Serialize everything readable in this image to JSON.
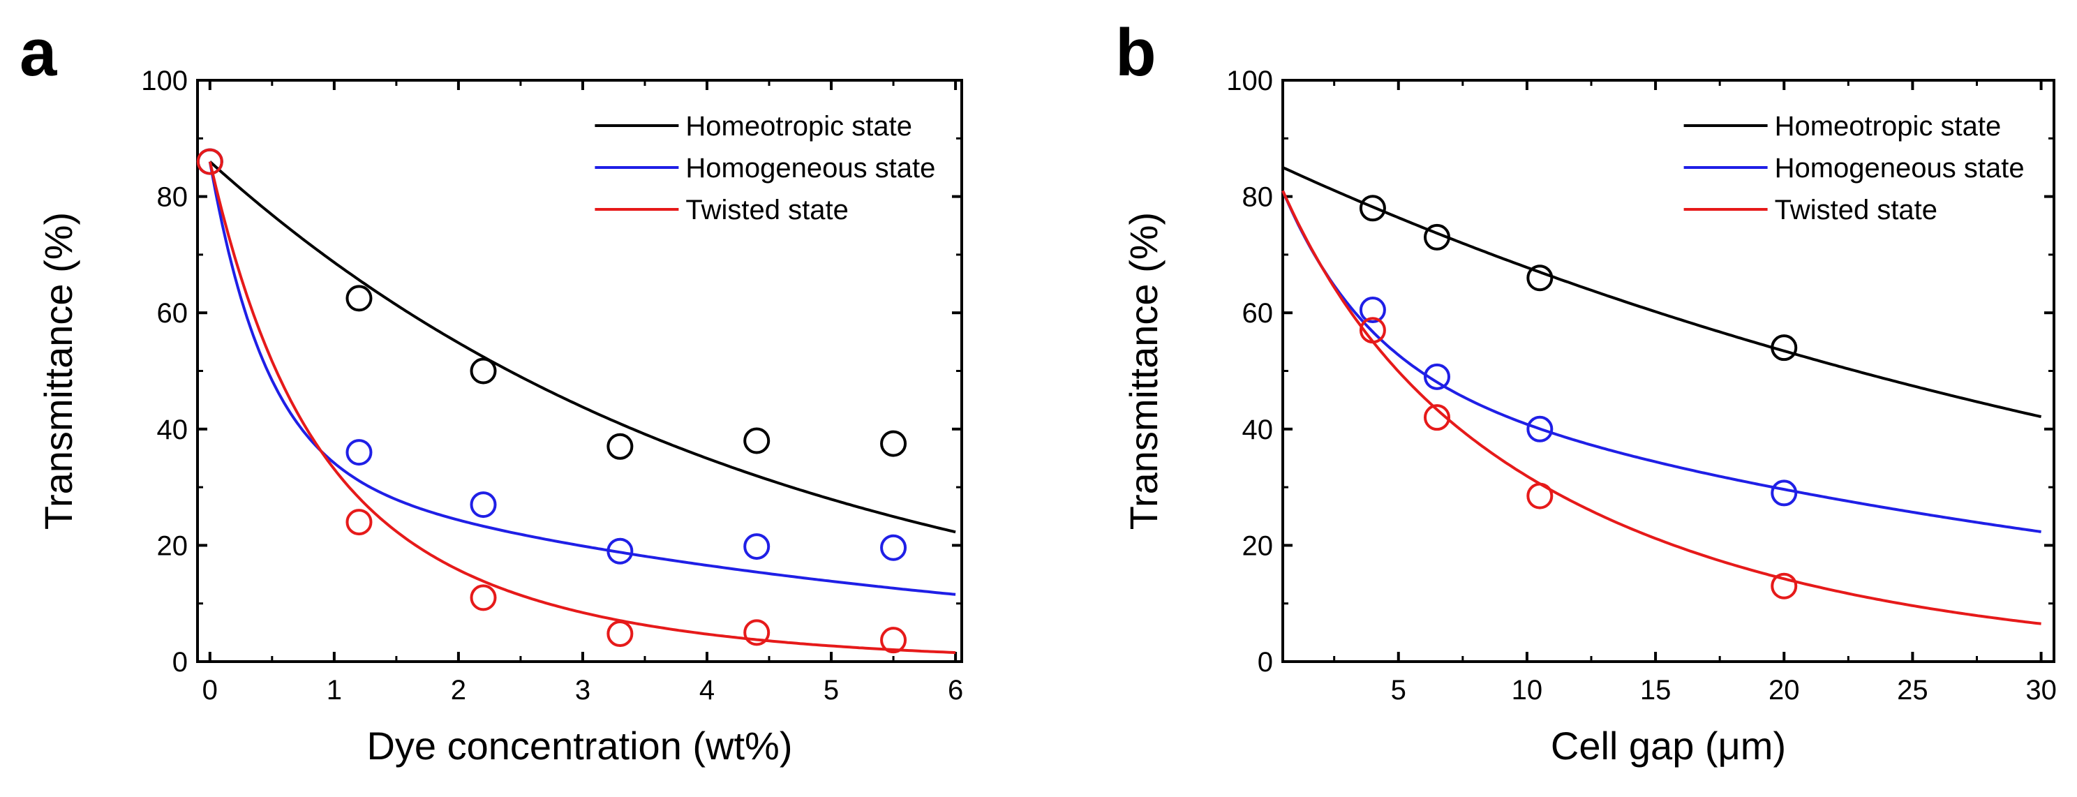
{
  "panels": [
    {
      "panel_label": "a",
      "chart_data": {
        "type": "scatter",
        "title": "",
        "xlabel": "Dye concentration (wt%)",
        "ylabel": "Transmittance (%)",
        "xlim": [
          -0.1,
          6.05
        ],
        "ylim": [
          0,
          100
        ],
        "xticks": [
          0,
          1,
          2,
          3,
          4,
          5,
          6
        ],
        "yticks": [
          0,
          20,
          40,
          60,
          80,
          100
        ],
        "xtick_labels": [
          "0",
          "1",
          "2",
          "3",
          "4",
          "5",
          "6"
        ],
        "ytick_labels": [
          "0",
          "20",
          "40",
          "60",
          "80",
          "100"
        ],
        "legend_position": "top-right",
        "series": [
          {
            "name": "Homeotropic state",
            "color": "#000000",
            "points": [
              [
                0,
                86
              ],
              [
                1.2,
                62.5
              ],
              [
                2.2,
                50
              ],
              [
                3.3,
                37
              ],
              [
                4.4,
                38
              ],
              [
                5.5,
                37.5
              ]
            ],
            "fit": {
              "model": "exponential",
              "y0": 86,
              "k": 0.225,
              "x_range": [
                0,
                6
              ]
            }
          },
          {
            "name": "Homogeneous state",
            "color": "#1f1fe6",
            "points": [
              [
                0,
                86
              ],
              [
                1.2,
                36
              ],
              [
                2.2,
                27
              ],
              [
                3.3,
                19
              ],
              [
                4.4,
                19.8
              ],
              [
                5.5,
                19.6
              ]
            ],
            "fit": {
              "model": "double-exponential",
              "a1": 52,
              "k1": 2.2,
              "a2": 34,
              "k2": 0.18,
              "x_range": [
                0,
                6
              ]
            }
          },
          {
            "name": "Twisted state",
            "color": "#e61a1a",
            "points": [
              [
                0,
                86
              ],
              [
                1.2,
                24
              ],
              [
                2.2,
                11
              ],
              [
                3.3,
                4.8
              ],
              [
                4.4,
                5
              ],
              [
                5.5,
                3.7
              ]
            ],
            "fit": {
              "model": "double-exponential",
              "a1": 44,
              "k1": 1.6,
              "a2": 42,
              "k2": 0.55,
              "x_range": [
                0,
                6
              ]
            }
          }
        ]
      }
    },
    {
      "panel_label": "b",
      "chart_data": {
        "type": "scatter",
        "title": "",
        "xlabel": "Cell gap (μm)",
        "ylabel": "Transmittance (%)",
        "xlim": [
          0.5,
          30.5
        ],
        "ylim": [
          0,
          100
        ],
        "xticks": [
          5,
          10,
          15,
          20,
          25,
          30
        ],
        "yticks": [
          0,
          20,
          40,
          60,
          80,
          100
        ],
        "xtick_labels": [
          "5",
          "10",
          "15",
          "20",
          "25",
          "30"
        ],
        "ytick_labels": [
          "0",
          "20",
          "40",
          "60",
          "80",
          "100"
        ],
        "legend_position": "top-right",
        "series": [
          {
            "name": "Homeotropic state",
            "color": "#000000",
            "points": [
              [
                4,
                78
              ],
              [
                6.5,
                73
              ],
              [
                10.5,
                66
              ],
              [
                20,
                54
              ]
            ],
            "fit": {
              "model": "exponential",
              "y0": 85,
              "k": 0.0238,
              "x_start": 0.5,
              "x_range": [
                0.5,
                30
              ]
            }
          },
          {
            "name": "Homogeneous state",
            "color": "#1f1fe6",
            "points": [
              [
                4,
                60.5
              ],
              [
                6.5,
                49
              ],
              [
                10.5,
                40
              ],
              [
                20,
                29
              ]
            ],
            "fit": {
              "model": "double-exponential",
              "a1": 30,
              "k1": 0.3,
              "a2": 51,
              "k2": 0.028,
              "x_start": 0.5,
              "x_range": [
                0.5,
                30
              ]
            }
          },
          {
            "name": "Twisted state",
            "color": "#e61a1a",
            "points": [
              [
                4,
                57
              ],
              [
                6.5,
                42
              ],
              [
                10.5,
                28.5
              ],
              [
                20,
                13
              ]
            ],
            "fit": {
              "model": "double-exponential",
              "a1": 16,
              "k1": 0.3,
              "a2": 65,
              "k2": 0.078,
              "x_start": 0.5,
              "x_range": [
                0.5,
                30
              ]
            }
          }
        ]
      }
    }
  ]
}
